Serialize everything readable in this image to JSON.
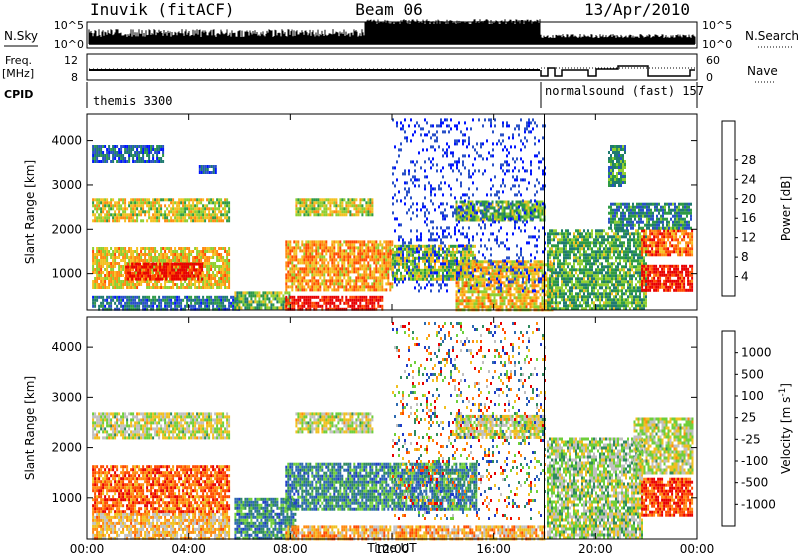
{
  "header": {
    "station": "Inuvik (fitACF)",
    "beam": "Beam 06",
    "date": "13/Apr/2010"
  },
  "strips": {
    "nsky_label": "N.Sky",
    "nsearch_label": "N.Search",
    "nsky_ticks": [
      "10^5",
      "10^0"
    ],
    "nsearch_ticks": [
      "10^5",
      "10^0"
    ],
    "freq_label": "Freq.",
    "freq_unit": "[MHz]",
    "freq_ticks": [
      "12",
      "8"
    ],
    "nave_label": "Nave",
    "nave_ticks": [
      "60",
      "0"
    ],
    "cpid_label": "CPID",
    "cpid_segments": [
      {
        "name": "themis 3300",
        "start_hour": 0,
        "end_hour": 18
      },
      {
        "name": "normalsound (fast) 157",
        "start_hour": 18,
        "end_hour": 24
      }
    ]
  },
  "chart_data": [
    {
      "type": "heatmap",
      "title": "",
      "xlabel": "Time UT",
      "ylabel": "Slant Range [km]",
      "x_ticks": [
        "00:00",
        "04:00",
        "08:00",
        "12:00",
        "16:00",
        "20:00",
        "00:00"
      ],
      "y_ticks": [
        1000,
        2000,
        3000,
        4000
      ],
      "xlim": [
        0,
        24
      ],
      "ylim": [
        180,
        4600
      ],
      "colorbar": {
        "label": "Power [dB]",
        "ticks": [
          "4",
          "8",
          "12",
          "16",
          "20",
          "24",
          "28"
        ],
        "colors": [
          "#0014ff",
          "#2850c8",
          "#1f7a70",
          "#2e9a45",
          "#8fcf30",
          "#f4c020",
          "#ff8a10",
          "#ff4a00",
          "#e80000"
        ]
      },
      "regions": [
        {
          "t": [
            0.2,
            5.6
          ],
          "r": [
            700,
            1600
          ],
          "level": 0.62
        },
        {
          "t": [
            1.5,
            4.5
          ],
          "r": [
            850,
            1250
          ],
          "level": 0.95
        },
        {
          "t": [
            0.2,
            5.6
          ],
          "r": [
            2200,
            2700
          ],
          "level": 0.55
        },
        {
          "t": [
            0.2,
            3.0
          ],
          "r": [
            3500,
            3900
          ],
          "level": 0.2
        },
        {
          "t": [
            4.4,
            5.1
          ],
          "r": [
            3250,
            3450
          ],
          "level": 0.15
        },
        {
          "t": [
            0.2,
            6.0
          ],
          "r": [
            200,
            500
          ],
          "level": 0.25
        },
        {
          "t": [
            5.8,
            8.0
          ],
          "r": [
            200,
            600
          ],
          "level": 0.45
        },
        {
          "t": [
            7.8,
            11.6
          ],
          "r": [
            200,
            500
          ],
          "level": 0.97
        },
        {
          "t": [
            7.8,
            12.0
          ],
          "r": [
            650,
            1750
          ],
          "level": 0.7
        },
        {
          "t": [
            8.2,
            11.2
          ],
          "r": [
            2300,
            2700
          ],
          "level": 0.55
        },
        {
          "t": [
            12.0,
            15.3
          ],
          "r": [
            900,
            1650
          ],
          "level": 0.5
        },
        {
          "t": [
            14.5,
            18.3
          ],
          "r": [
            200,
            1300
          ],
          "level": 0.62
        },
        {
          "t": [
            14.5,
            18.0
          ],
          "r": [
            2200,
            2650
          ],
          "level": 0.45
        },
        {
          "t": [
            18.1,
            22.0
          ],
          "r": [
            200,
            2000
          ],
          "level": 0.4
        },
        {
          "t": [
            21.8,
            23.8
          ],
          "r": [
            650,
            1200
          ],
          "level": 0.93
        },
        {
          "t": [
            21.8,
            23.8
          ],
          "r": [
            1400,
            2000
          ],
          "level": 0.8
        },
        {
          "t": [
            20.5,
            23.8
          ],
          "r": [
            2000,
            2600
          ],
          "level": 0.3
        },
        {
          "t": [
            20.5,
            21.2
          ],
          "r": [
            3000,
            3900
          ],
          "level": 0.35
        },
        {
          "t": [
            12.0,
            18.0
          ],
          "r": [
            600,
            4500
          ],
          "level": 0.05,
          "sparse": 1
        }
      ]
    },
    {
      "type": "heatmap",
      "title": "",
      "xlabel": "Time UT",
      "ylabel": "Slant Range [km]",
      "x_ticks": [
        "00:00",
        "04:00",
        "08:00",
        "12:00",
        "16:00",
        "20:00",
        "00:00"
      ],
      "y_ticks": [
        1000,
        2000,
        3000,
        4000
      ],
      "xlim": [
        0,
        24
      ],
      "ylim": [
        180,
        4600
      ],
      "colorbar": {
        "label": "Velocity [m s^-1]",
        "ticks": [
          "1000",
          "500",
          "100",
          "25",
          "-25",
          "-100",
          "-500",
          "-1000"
        ],
        "colors": [
          "#1e3cc8",
          "#2e6ab0",
          "#2f8a5f",
          "#6ecf3a",
          "#c0c0c0",
          "#f0c020",
          "#ff8a10",
          "#ff4a00",
          "#e80000"
        ]
      },
      "regions": [
        {
          "t": [
            0.2,
            5.6
          ],
          "r": [
            750,
            1650
          ],
          "level": 0.8
        },
        {
          "t": [
            0.2,
            5.6
          ],
          "r": [
            2200,
            2700
          ],
          "level": 0.5
        },
        {
          "t": [
            0.2,
            5.6
          ],
          "r": [
            200,
            700
          ],
          "level": 0.62
        },
        {
          "t": [
            5.8,
            8.2
          ],
          "r": [
            200,
            1000
          ],
          "level": 0.25
        },
        {
          "t": [
            7.8,
            15.3
          ],
          "r": [
            800,
            1700
          ],
          "level": 0.25
        },
        {
          "t": [
            7.8,
            18.0
          ],
          "r": [
            200,
            450
          ],
          "level": 0.65
        },
        {
          "t": [
            8.2,
            11.2
          ],
          "r": [
            2300,
            2700
          ],
          "level": 0.5
        },
        {
          "t": [
            14.5,
            18.0
          ],
          "r": [
            2200,
            2650
          ],
          "level": 0.5
        },
        {
          "t": [
            18.1,
            21.8
          ],
          "r": [
            200,
            2200
          ],
          "level": 0.45
        },
        {
          "t": [
            21.8,
            23.8
          ],
          "r": [
            650,
            1400
          ],
          "level": 0.85
        },
        {
          "t": [
            21.5,
            23.8
          ],
          "r": [
            1500,
            2600
          ],
          "level": 0.5
        },
        {
          "t": [
            12.0,
            18.0
          ],
          "r": [
            600,
            4500
          ],
          "level": 0.3,
          "sparse": 1
        }
      ]
    }
  ]
}
